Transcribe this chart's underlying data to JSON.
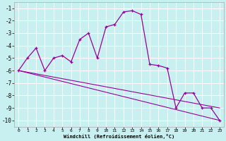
{
  "xlabel": "Windchill (Refroidissement éolien,°C)",
  "background_color": "#c8f0f0",
  "line_color": "#990099",
  "xlim": [
    -0.5,
    23.5
  ],
  "ylim": [
    -10.5,
    -0.5
  ],
  "xticks": [
    0,
    1,
    2,
    3,
    4,
    5,
    6,
    7,
    8,
    9,
    10,
    11,
    12,
    13,
    14,
    15,
    16,
    17,
    18,
    19,
    20,
    21,
    22,
    23
  ],
  "yticks": [
    -1,
    -2,
    -3,
    -4,
    -5,
    -6,
    -7,
    -8,
    -9,
    -10
  ],
  "series1_x": [
    0,
    1,
    2,
    3,
    4,
    5,
    6,
    7,
    8,
    9,
    10,
    11,
    12,
    13,
    14,
    15,
    16,
    17,
    18,
    19,
    20,
    21,
    22,
    23
  ],
  "series1_y": [
    -6.0,
    -5.0,
    -4.2,
    -6.0,
    -5.0,
    -4.8,
    -5.3,
    -3.5,
    -3.0,
    -5.0,
    -2.5,
    -2.3,
    -1.3,
    -1.2,
    -1.5,
    -5.5,
    -5.6,
    -5.8,
    -9.0,
    -7.8,
    -7.8,
    -9.0,
    -9.0,
    -10.0
  ],
  "series2_x": [
    0,
    23
  ],
  "series2_y": [
    -6.0,
    -9.0
  ],
  "series3_x": [
    0,
    23
  ],
  "series3_y": [
    -6.0,
    -10.0
  ]
}
